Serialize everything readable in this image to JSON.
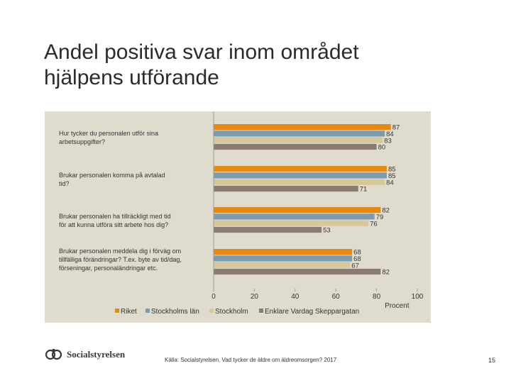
{
  "page": {
    "title_line1": "Andel positiva svar inom området",
    "title_line2": "hjälpens utförande",
    "source": "Källa: Socialstyrelsen, Vad tycker de äldre om äldreomsorgen? 2017",
    "page_number": "15",
    "logo_text": "Socialstyrelsen"
  },
  "colors": {
    "panel": "#dfdccd",
    "series": [
      "#e8890f",
      "#7b9bb3",
      "#d9c79c",
      "#8a7c72"
    ]
  },
  "chart_data": {
    "type": "bar",
    "orientation": "horizontal",
    "xlabel": "Procent",
    "xlim": [
      0,
      100
    ],
    "xticks": [
      "0",
      "20",
      "40",
      "60",
      "80",
      "100"
    ],
    "categories": [
      {
        "line1": "Hur tycker du personalen utför sina",
        "line2": "arbetsuppgifter?",
        "line3": ""
      },
      {
        "line1": "Brukar personalen komma på avtalad",
        "line2": "tid?",
        "line3": ""
      },
      {
        "line1": "Brukar personalen ha tillräckligt med tid",
        "line2": "för att kunna utföra sitt arbete hos dig?",
        "line3": ""
      },
      {
        "line1": "Brukar personalen meddela dig i förväg om",
        "line2": "tillfälliga förändringar? T.ex. byte av tid/dag,",
        "line3": "förseningar, personaländringar etc."
      }
    ],
    "series": [
      {
        "name": "Riket",
        "values": [
          87,
          85,
          82,
          68
        ]
      },
      {
        "name": "Stockholms län",
        "values": [
          84,
          85,
          79,
          68
        ]
      },
      {
        "name": "Stockholm",
        "values": [
          83,
          84,
          76,
          67
        ]
      },
      {
        "name": "Enklare Vardag Skeppargatan",
        "values": [
          80,
          71,
          53,
          82
        ]
      }
    ]
  }
}
